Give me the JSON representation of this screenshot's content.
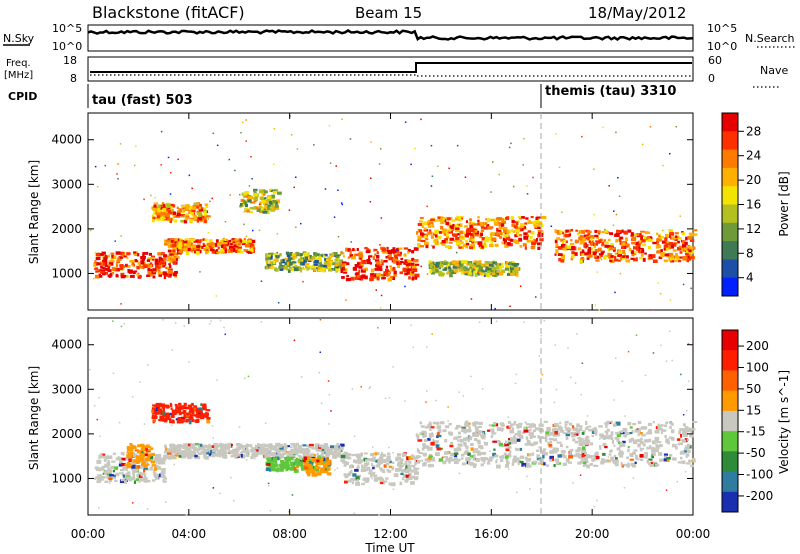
{
  "header": {
    "radar": "Blackstone (fitACF)",
    "beam": "Beam 15",
    "date": "18/May/2012"
  },
  "summary": {
    "nsky_label": "N.Sky",
    "nsky_ticks": [
      "10^5",
      "10^0"
    ],
    "nsearch_label": "N.Search",
    "nsearch_ticks": [
      "10^5",
      "10^0"
    ],
    "freq_label_1": "Freq.",
    "freq_label_2": "[MHz]",
    "freq_ticks": [
      "18",
      "8"
    ],
    "nave_label": "Nave",
    "nave_ticks": [
      "60",
      "0"
    ],
    "cpid_label": "CPID",
    "cpid_1": "tau (fast) 503",
    "cpid_2": "themis (tau) 3310"
  },
  "chart_data": [
    {
      "type": "heatmap",
      "title": "",
      "ylabel": "Slant Range [km]",
      "xlabel": "",
      "x_ticks": [
        "00:00",
        "04:00",
        "08:00",
        "12:00",
        "16:00",
        "20:00",
        "00:00"
      ],
      "y_ticks": [
        1000,
        2000,
        3000,
        4000
      ],
      "xlim_hours": [
        0,
        24
      ],
      "ylim_km": [
        180,
        4600
      ],
      "colorbar": {
        "label": "Power [dB]",
        "ticks": [
          "28",
          "24",
          "20",
          "16",
          "12",
          "8",
          "4"
        ],
        "colors": [
          "#0020ff",
          "#1e4fa8",
          "#3f7a55",
          "#6e9a3a",
          "#b4c020",
          "#f2e400",
          "#ffb000",
          "#ff7a00",
          "#ff3000",
          "#e60000"
        ]
      },
      "echo_regions": [
        {
          "t_start": 0.2,
          "t_end": 3.5,
          "range_km": [
            950,
            1500
          ],
          "level": 0.85
        },
        {
          "t_start": 2.5,
          "t_end": 4.7,
          "range_km": [
            2200,
            2600
          ],
          "level": 0.7
        },
        {
          "t_start": 3.0,
          "t_end": 6.5,
          "range_km": [
            1500,
            1800
          ],
          "level": 0.75
        },
        {
          "t_start": 6.0,
          "t_end": 7.5,
          "range_km": [
            2400,
            2900
          ],
          "level": 0.5
        },
        {
          "t_start": 7.0,
          "t_end": 10.0,
          "range_km": [
            1100,
            1500
          ],
          "level": 0.4
        },
        {
          "t_start": 10.0,
          "t_end": 13.0,
          "range_km": [
            900,
            1600
          ],
          "level": 0.9
        },
        {
          "t_start": 13.0,
          "t_end": 18.0,
          "range_km": [
            1600,
            2300
          ],
          "level": 0.75
        },
        {
          "t_start": 13.5,
          "t_end": 17.0,
          "range_km": [
            1000,
            1300
          ],
          "level": 0.45
        },
        {
          "t_start": 18.5,
          "t_end": 24.0,
          "range_km": [
            1300,
            2000
          ],
          "level": 0.8
        }
      ]
    },
    {
      "type": "heatmap",
      "title": "",
      "ylabel": "Slant Range [km]",
      "xlabel": "Time UT",
      "x_ticks": [
        "00:00",
        "04:00",
        "08:00",
        "12:00",
        "16:00",
        "20:00",
        "00:00"
      ],
      "y_ticks": [
        1000,
        2000,
        3000,
        4000
      ],
      "xlim_hours": [
        0,
        24
      ],
      "ylim_km": [
        180,
        4600
      ],
      "colorbar": {
        "label": "Velocity [m s^-1]",
        "ticks": [
          "200",
          "100",
          "50",
          "15",
          "-15",
          "-50",
          "-100",
          "-200"
        ],
        "colors": [
          "#1a2fb0",
          "#2e7da0",
          "#2e8b3a",
          "#5ec83a",
          "#c8c8c0",
          "#ff9a00",
          "#ff6000",
          "#ff1e00",
          "#e60000"
        ]
      },
      "echo_regions": [
        {
          "t_start": 0.2,
          "t_end": 3.0,
          "range_km": [
            950,
            1600
          ],
          "velocity_class": "ground"
        },
        {
          "t_start": 1.5,
          "t_end": 2.5,
          "range_km": [
            1300,
            1800
          ],
          "velocity_class": "-50"
        },
        {
          "t_start": 2.5,
          "t_end": 4.7,
          "range_km": [
            2300,
            2700
          ],
          "velocity_class": "-100"
        },
        {
          "t_start": 3.0,
          "t_end": 10.0,
          "range_km": [
            1500,
            1800
          ],
          "velocity_class": "ground"
        },
        {
          "t_start": 7.0,
          "t_end": 9.5,
          "range_km": [
            1200,
            1500
          ],
          "velocity_class": "50"
        },
        {
          "t_start": 8.5,
          "t_end": 9.5,
          "range_km": [
            1100,
            1500
          ],
          "velocity_class": "-50"
        },
        {
          "t_start": 10.0,
          "t_end": 13.0,
          "range_km": [
            900,
            1600
          ],
          "velocity_class": "ground"
        },
        {
          "t_start": 13.0,
          "t_end": 24.0,
          "range_km": [
            1300,
            2300
          ],
          "velocity_class": "ground"
        }
      ]
    }
  ]
}
